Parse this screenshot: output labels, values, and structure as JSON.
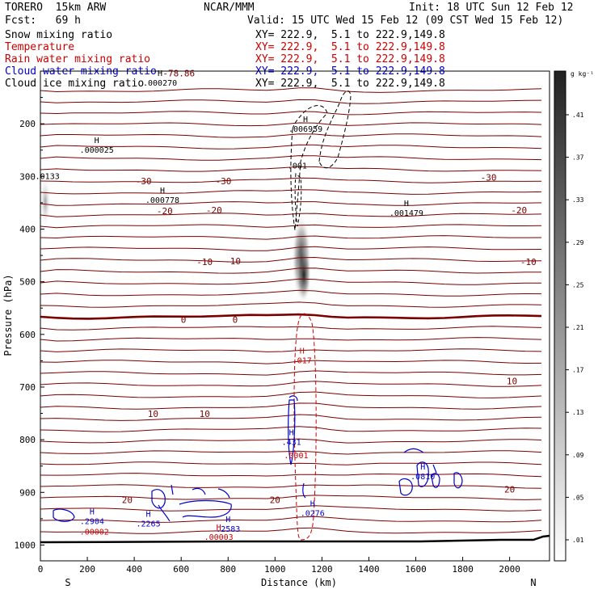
{
  "header": {
    "model": "TORERO  15km ARW",
    "org": "NCAR/MMM",
    "init": "Init: 18 UTC Sun 12 Feb 12",
    "fcst": "Fcst:   69 h",
    "valid": "Valid: 15 UTC Wed 15 Feb 12 (09 CST Wed 15 Feb 12)",
    "fields": [
      {
        "label": "Snow mixing ratio",
        "xy": "XY= 222.9,  5.1 to 222.9,149.8",
        "color": "#000000"
      },
      {
        "label": "Temperature",
        "xy": "XY= 222.9,  5.1 to 222.9,149.8",
        "color": "#cc0000"
      },
      {
        "label": "Rain water mixing ratio",
        "xy": "XY= 222.9,  5.1 to 222.9,149.8",
        "color": "#cc0000"
      },
      {
        "label": "Cloud water mixing ratio",
        "xy": "XY= 222.9,  5.1 to 222.9,149.8",
        "color": "#0000cc"
      },
      {
        "label": "Cloud ice mixing ratio",
        "xy": "XY= 222.9,  5.1 to 222.9,149.8",
        "color": "#000000"
      }
    ]
  },
  "chart_data": {
    "type": "cross-section",
    "xlabel": "Distance (km)",
    "ylabel": "Pressure (hPa)",
    "xlim": [
      0,
      2170
    ],
    "ylim": [
      100,
      1030
    ],
    "x_ticks": [
      0,
      200,
      400,
      600,
      800,
      1000,
      1200,
      1400,
      1600,
      1800,
      2000
    ],
    "y_ticks": [
      200,
      300,
      400,
      500,
      600,
      700,
      800,
      900,
      1000
    ],
    "x_end_labels": {
      "left": "S",
      "right": "N"
    },
    "colorbar": {
      "unit": "g kg⁻¹",
      "ticks": [
        ".01",
        ".05",
        ".09",
        ".13",
        ".17",
        ".21",
        ".25",
        ".29",
        ".33",
        ".37",
        ".41"
      ]
    },
    "temperature_labels": [
      {
        "text": "-78.86",
        "x": 590,
        "p": 110
      },
      {
        "text": "-30",
        "x": 440,
        "p": 315
      },
      {
        "text": "-30",
        "x": 780,
        "p": 315
      },
      {
        "text": "-30",
        "x": 1910,
        "p": 308
      },
      {
        "text": "-20",
        "x": 530,
        "p": 372
      },
      {
        "text": "-20",
        "x": 740,
        "p": 370
      },
      {
        "text": "-20",
        "x": 2040,
        "p": 370
      },
      {
        "text": "-10",
        "x": 700,
        "p": 468
      },
      {
        "text": "-10",
        "x": 820,
        "p": 467
      },
      {
        "text": "-10",
        "x": 2080,
        "p": 468
      },
      {
        "text": "0",
        "x": 610,
        "p": 578
      },
      {
        "text": "0",
        "x": 830,
        "p": 578
      },
      {
        "text": "10",
        "x": 480,
        "p": 757
      },
      {
        "text": "10",
        "x": 700,
        "p": 757
      },
      {
        "text": "10",
        "x": 2010,
        "p": 695
      },
      {
        "text": "20",
        "x": 370,
        "p": 920
      },
      {
        "text": "20",
        "x": 1000,
        "p": 920
      },
      {
        "text": "20",
        "x": 2000,
        "p": 900
      }
    ],
    "maxima_labels": [
      {
        "mark": "H",
        "value": ".000270",
        "x": 510,
        "p": 128,
        "color": "#000000"
      },
      {
        "mark": "H",
        "value": ".000025",
        "x": 240,
        "p": 255,
        "color": "#000000"
      },
      {
        "mark": "",
        "value": ".0133",
        "x": 30,
        "p": 305,
        "color": "#000000"
      },
      {
        "mark": "H",
        "value": ".000778",
        "x": 520,
        "p": 350,
        "color": "#000000"
      },
      {
        "mark": "H",
        "value": ".006959",
        "x": 1130,
        "p": 215,
        "color": "#000000"
      },
      {
        "mark": "",
        "value": ".001",
        "x": 1095,
        "p": 285,
        "color": "#000000"
      },
      {
        "mark": "H",
        "value": ".001479",
        "x": 1560,
        "p": 375,
        "color": "#000000"
      },
      {
        "mark": "H",
        "value": ".017",
        "x": 1115,
        "p": 655,
        "color": "#cc0000"
      },
      {
        "mark": "H",
        "value": ".431",
        "x": 1070,
        "p": 810,
        "color": "#0000cc"
      },
      {
        "mark": "",
        "value": ".0001",
        "x": 1090,
        "p": 835,
        "color": "#cc0000"
      },
      {
        "mark": "H",
        "value": ".0810",
        "x": 1630,
        "p": 875,
        "color": "#0000cc"
      },
      {
        "mark": "H",
        "value": ".0276",
        "x": 1160,
        "p": 945,
        "color": "#0000cc"
      },
      {
        "mark": "H",
        "value": ".2904",
        "x": 220,
        "p": 960,
        "color": "#0000cc"
      },
      {
        "mark": "",
        "value": ".00002",
        "x": 230,
        "p": 980,
        "color": "#cc0000"
      },
      {
        "mark": "H",
        "value": ".2265",
        "x": 460,
        "p": 965,
        "color": "#0000cc"
      },
      {
        "mark": "H",
        "value": ".2583",
        "x": 800,
        "p": 975,
        "color": "#0000cc"
      },
      {
        "mark": "H",
        "value": ".00003",
        "x": 760,
        "p": 990,
        "color": "#cc0000"
      }
    ]
  }
}
